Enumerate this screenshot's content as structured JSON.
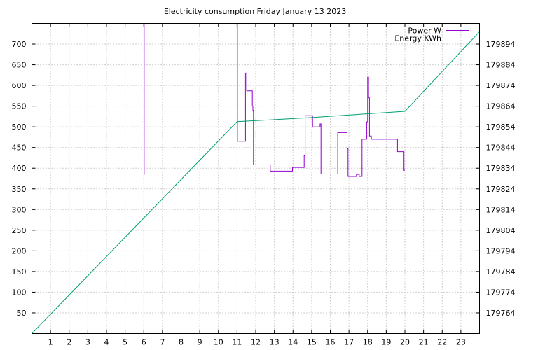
{
  "chart_data": {
    "type": "line",
    "title": "Electricity consumption Friday January 13 2023",
    "xlabel": "",
    "ylabel": "",
    "y2label": "",
    "xlim": [
      0,
      24
    ],
    "ylim": [
      0,
      750
    ],
    "y2lim": [
      179754,
      179904
    ],
    "x_ticks": [
      1,
      2,
      3,
      4,
      5,
      6,
      7,
      8,
      9,
      10,
      11,
      12,
      13,
      14,
      15,
      16,
      17,
      18,
      19,
      20,
      21,
      22,
      23
    ],
    "y_ticks": [
      50,
      100,
      150,
      200,
      250,
      300,
      350,
      400,
      450,
      500,
      550,
      600,
      650,
      700
    ],
    "y2_ticks": [
      179764,
      179774,
      179784,
      179794,
      179804,
      179814,
      179824,
      179834,
      179844,
      179854,
      179864,
      179874,
      179884,
      179894
    ],
    "grid": true,
    "legend_position": "top-right",
    "series": [
      {
        "name": "Power W",
        "axis": "left",
        "color": "#9400d3",
        "x": [
          0,
          6.0,
          6.0,
          6.02,
          6.02,
          6.04,
          6.04,
          11.0,
          11.0,
          11.02,
          11.02,
          11.08,
          11.08,
          11.45,
          11.45,
          11.52,
          11.52,
          11.58,
          11.58,
          11.82,
          11.82,
          11.85,
          11.85,
          11.88,
          11.88,
          12.78,
          12.78,
          13.97,
          13.97,
          14.6,
          14.6,
          14.65,
          14.65,
          15.05,
          15.05,
          15.45,
          15.45,
          15.5,
          15.5,
          16.4,
          16.4,
          16.9,
          16.9,
          16.95,
          16.95,
          17.4,
          17.4,
          17.55,
          17.55,
          17.7,
          17.7,
          17.95,
          17.95,
          18.0,
          18.0,
          18.05,
          18.05,
          18.1,
          18.1,
          18.2,
          18.2,
          18.5,
          18.5,
          19.6,
          19.6,
          19.9,
          19.9,
          19.95,
          19.95,
          20.0
        ],
        "y": [
          null,
          null,
          750,
          750,
          385,
          385,
          null,
          null,
          750,
          750,
          465,
          465,
          465,
          465,
          630,
          630,
          587,
          587,
          587,
          587,
          550,
          550,
          540,
          540,
          408,
          408,
          393,
          393,
          402,
          402,
          430,
          430,
          527,
          527,
          500,
          500,
          507,
          507,
          386,
          386,
          486,
          486,
          447,
          447,
          380,
          380,
          385,
          385,
          380,
          380,
          470,
          470,
          512,
          512,
          620,
          620,
          570,
          570,
          478,
          478,
          470,
          470,
          470,
          470,
          440,
          440,
          440,
          440,
          395,
          395
        ]
      },
      {
        "name": "Energy KWh",
        "axis": "right",
        "color": "#009e73",
        "x": [
          0,
          11.0,
          15.0,
          20.0,
          24.0
        ],
        "y": [
          179754,
          179856.5,
          179858.5,
          179861.5,
          179900
        ]
      }
    ]
  }
}
